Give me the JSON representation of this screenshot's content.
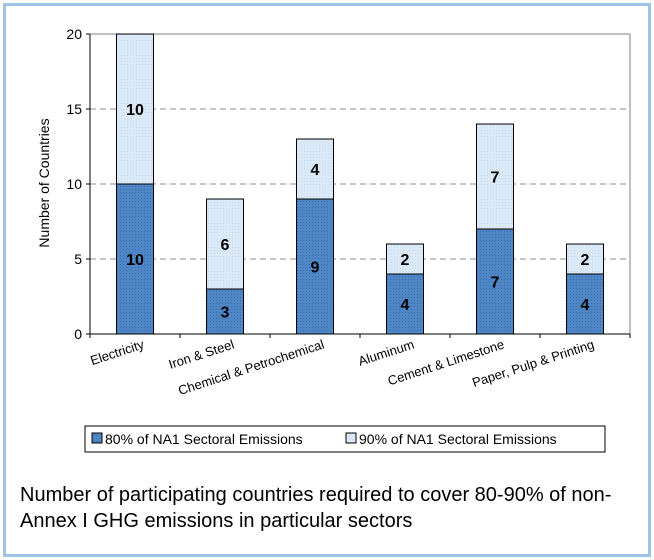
{
  "chart_data": {
    "type": "bar",
    "stacked": true,
    "categories": [
      "Electricity",
      "Iron & Steel",
      "Chemical & Petrochemical",
      "Aluminum",
      "Cement & Limestone",
      "Paper, Pulp & Printing"
    ],
    "series": [
      {
        "name": "80% of NA1 Sectoral Emissions",
        "values": [
          10,
          3,
          9,
          4,
          7,
          4
        ],
        "color": "#4f86c6",
        "data_labels": [
          "10",
          "3",
          "9",
          "4",
          "7",
          "4"
        ]
      },
      {
        "name": "90% of NA1 Sectoral Emissions",
        "values": [
          10,
          6,
          4,
          2,
          7,
          2
        ],
        "color": "#dce9f7",
        "data_labels": [
          "10",
          "6",
          "4",
          "2",
          "7",
          "2"
        ]
      }
    ],
    "ylabel": "Number of Countries",
    "xlabel": "",
    "ylim": [
      0,
      20
    ],
    "yticks": [
      "0",
      "5",
      "10",
      "15",
      "20"
    ],
    "grid": "horizontal dashed",
    "legend_position": "bottom"
  },
  "caption": "Number of participating countries required to cover 80-90% of non-Annex I GHG emissions in particular sectors"
}
